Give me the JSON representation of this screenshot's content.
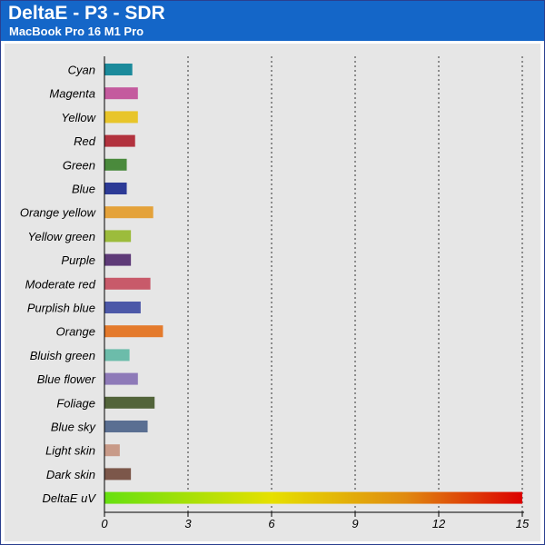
{
  "header": {
    "title": "DeltaE - P3 - SDR",
    "subtitle": "MacBook Pro 16 M1 Pro"
  },
  "colors": {
    "header_bg": "#1466c8",
    "plot_bg": "#e6e6e6",
    "gradient": [
      "#66e010",
      "#e6e000",
      "#e08a10",
      "#dc0000"
    ]
  },
  "chart_data": {
    "type": "bar",
    "orientation": "horizontal",
    "title": "DeltaE - P3 - SDR",
    "subtitle": "MacBook Pro 16 M1 Pro",
    "xlabel": "",
    "ylabel": "",
    "xlim": [
      0,
      15
    ],
    "xticks": [
      0,
      3,
      6,
      9,
      12,
      15
    ],
    "grid": "vertical dotted",
    "categories": [
      "Cyan",
      "Magenta",
      "Yellow",
      "Red",
      "Green",
      "Blue",
      "Orange yellow",
      "Yellow green",
      "Purple",
      "Moderate red",
      "Purplish blue",
      "Orange",
      "Bluish green",
      "Blue flower",
      "Foliage",
      "Blue sky",
      "Light skin",
      "Dark skin",
      "DeltaE uV"
    ],
    "values": [
      1.0,
      1.2,
      1.2,
      1.1,
      0.8,
      0.8,
      1.75,
      0.95,
      0.95,
      1.65,
      1.3,
      2.1,
      0.9,
      1.2,
      1.8,
      1.55,
      0.55,
      0.95,
      15
    ],
    "bar_colors": [
      "#1b8a9b",
      "#c45a9e",
      "#e8c52a",
      "#b2323e",
      "#4a8a3c",
      "#2c3a96",
      "#e4a23a",
      "#9cbc3c",
      "#5e3a78",
      "#c85a6a",
      "#4c58a8",
      "#e47a2c",
      "#6cbcaa",
      "#8e7ab8",
      "#52643a",
      "#5a6f92",
      "#c89a88",
      "#7c574a",
      "gradient"
    ]
  }
}
